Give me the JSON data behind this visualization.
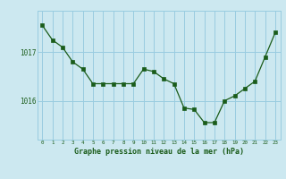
{
  "x": [
    0,
    1,
    2,
    3,
    4,
    5,
    6,
    7,
    8,
    9,
    10,
    11,
    12,
    13,
    14,
    15,
    16,
    17,
    18,
    19,
    20,
    21,
    22,
    23
  ],
  "y": [
    1017.55,
    1017.25,
    1017.1,
    1016.8,
    1016.65,
    1016.35,
    1016.35,
    1016.35,
    1016.35,
    1016.35,
    1016.65,
    1016.6,
    1016.45,
    1016.35,
    1015.85,
    1015.82,
    1015.55,
    1015.55,
    1016.0,
    1016.1,
    1016.25,
    1016.4,
    1016.9,
    1017.4
  ],
  "line_color": "#1a5c1a",
  "marker_color": "#1a5c1a",
  "bg_color": "#cce8f0",
  "grid_color": "#99cce0",
  "xlabel": "Graphe pression niveau de la mer (hPa)",
  "xlabel_color": "#1a5c1a",
  "tick_color": "#1a5c1a",
  "yticks": [
    1016,
    1017
  ],
  "ylim": [
    1015.2,
    1017.85
  ],
  "xlim": [
    -0.5,
    23.5
  ],
  "figsize": [
    3.2,
    2.0
  ],
  "dpi": 100
}
